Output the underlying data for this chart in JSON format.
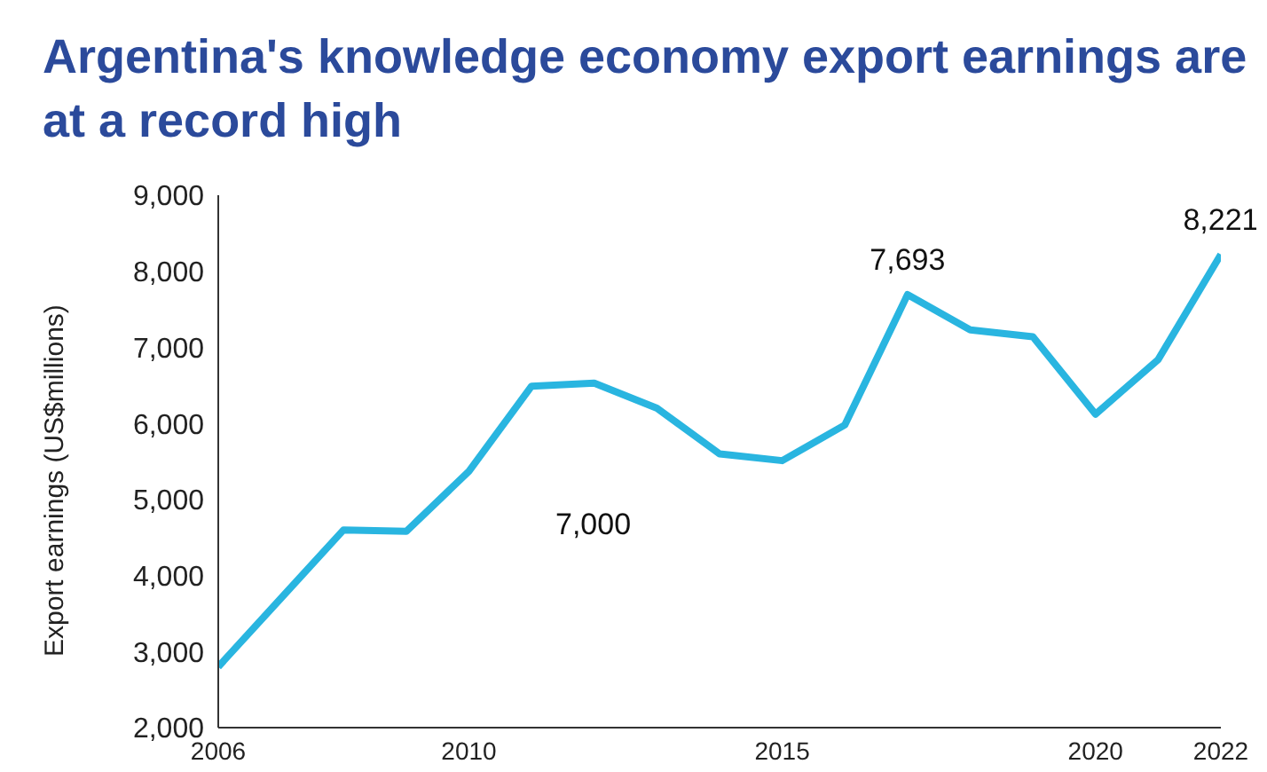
{
  "chart_data": {
    "type": "line",
    "title": "Argentina's knowledge economy export earnings are at a record high",
    "ylabel": "Export earnings (US$millions)",
    "x": [
      2006,
      2007,
      2008,
      2009,
      2010,
      2011,
      2012,
      2013,
      2014,
      2015,
      2016,
      2017,
      2018,
      2019,
      2020,
      2021,
      2022
    ],
    "series": [
      {
        "color": "#29b5e0",
        "values": [
          2800,
          3700,
          4600,
          4580,
          5370,
          6490,
          6530,
          6200,
          5600,
          5510,
          5980,
          7693,
          7230,
          7140,
          6120,
          6840,
          8221
        ],
        "value_labels": [
          null,
          null,
          null,
          null,
          null,
          null,
          null,
          null,
          null,
          null,
          null,
          "7,693",
          null,
          null,
          null,
          null,
          "8,221"
        ]
      }
    ],
    "xlim": [
      2006,
      2022
    ],
    "xticks": [
      2006,
      2010,
      2015,
      2020,
      2022
    ],
    "ylim": [
      2000,
      9000
    ],
    "yticks": [
      {
        "value": 2000,
        "label": "2,000"
      },
      {
        "value": 3000,
        "label": "3,000"
      },
      {
        "value": 4000,
        "label": "4,000"
      },
      {
        "value": 5000,
        "label": "5,000"
      },
      {
        "value": 6000,
        "label": "6,000"
      },
      {
        "value": 7000,
        "label": "7,000"
      },
      {
        "value": 8000,
        "label": "8,000"
      },
      {
        "value": 9000,
        "label": "9,000"
      }
    ],
    "annotations": [
      "7,000"
    ],
    "grid": false,
    "legend": false,
    "marker": "none",
    "line_style": "solid"
  }
}
